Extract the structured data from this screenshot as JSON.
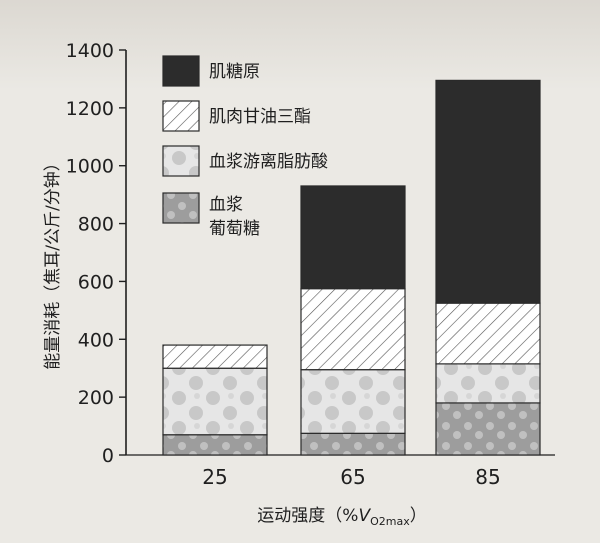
{
  "chart_data": {
    "type": "bar",
    "stacked": true,
    "categories": [
      "25",
      "65",
      "85"
    ],
    "series": [
      {
        "name": "血浆葡萄糖",
        "values": [
          70,
          75,
          180
        ],
        "color": "#9a9a9a",
        "pattern": "dots"
      },
      {
        "name": "血浆游离脂肪酸",
        "values": [
          230,
          220,
          135
        ],
        "color": "#e2e2e2",
        "pattern": "blobs"
      },
      {
        "name": "肌肉甘油三酯",
        "values": [
          80,
          280,
          210
        ],
        "color": "#ffffff",
        "pattern": "hatch"
      },
      {
        "name": "肌糖原",
        "values": [
          0,
          355,
          770
        ],
        "color": "#2c2c2c",
        "pattern": "solid"
      }
    ],
    "legend_order": [
      "肌糖原",
      "肌肉甘油三酯",
      "血浆游离脂肪酸",
      "血浆葡萄糖"
    ],
    "legend_lines": [
      [
        "肌糖原"
      ],
      [
        "肌肉甘油三酯"
      ],
      [
        "血浆游离脂肪酸"
      ],
      [
        "血浆",
        "葡萄糖"
      ]
    ],
    "legend_position": "top-left",
    "ylabel": "能量消耗（焦耳/公斤/分钟）",
    "xlabel": "运动强度（%",
    "xlabel_symbol": "V",
    "xlabel_subscript": "O2max",
    "xlabel_close": "）",
    "ylim": [
      0,
      1400
    ],
    "yticks": [
      0,
      200,
      400,
      600,
      800,
      1000,
      1200,
      1400
    ],
    "grid": false
  }
}
